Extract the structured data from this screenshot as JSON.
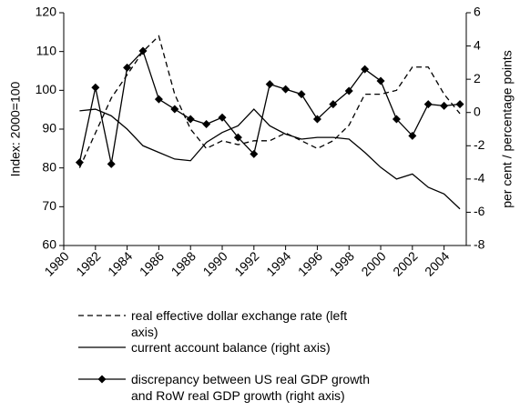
{
  "chart_data": {
    "type": "line",
    "y_label": "Index: 2000=100",
    "y2_label": "per cent / percentage points",
    "x": [
      1981,
      1982,
      1983,
      1984,
      1985,
      1986,
      1987,
      1988,
      1989,
      1990,
      1991,
      1992,
      1993,
      1994,
      1995,
      1996,
      1997,
      1998,
      1999,
      2000,
      2001,
      2002,
      2003,
      2004,
      2005
    ],
    "xlim": [
      1980,
      2005.4
    ],
    "xticks": [
      1980,
      1982,
      1984,
      1986,
      1988,
      1990,
      1992,
      1994,
      1996,
      1998,
      2000,
      2002,
      2004
    ],
    "ylim": [
      60,
      120
    ],
    "yticks": [
      60,
      70,
      80,
      90,
      100,
      110,
      120
    ],
    "y2lim": [
      -8,
      6
    ],
    "y2ticks": [
      -8,
      -6,
      -4,
      -2,
      0,
      2,
      4,
      6
    ],
    "series": [
      {
        "name": "real effective dollar exchange rate (left axis)",
        "color": "#000000",
        "dash": "6,4",
        "marker": "none",
        "axis": "y",
        "values": [
          80,
          89,
          98,
          104,
          110,
          114,
          99,
          90,
          85,
          87,
          86,
          87,
          87,
          89,
          87,
          85,
          87,
          91,
          99,
          99,
          100,
          106,
          106,
          99,
          94
        ]
      },
      {
        "name": "current account balance (right axis)",
        "color": "#000000",
        "dash": "none",
        "marker": "none",
        "axis": "y2",
        "values": [
          0.1,
          0.2,
          -0.2,
          -1.0,
          -2.0,
          -2.4,
          -2.8,
          -2.9,
          -1.8,
          -1.2,
          -0.8,
          0.2,
          -0.8,
          -1.3,
          -1.6,
          -1.5,
          -1.5,
          -1.6,
          -2.4,
          -3.3,
          -4.0,
          -3.7,
          -4.5,
          -4.9,
          -5.8
        ]
      },
      {
        "name": "discrepancy between US real GDP growth and RoW real GDP growth (right axis)",
        "color": "#000000",
        "dash": "none",
        "marker": "diamond",
        "axis": "y2",
        "values": [
          -3.0,
          1.5,
          -3.1,
          2.7,
          3.7,
          0.8,
          0.2,
          -0.4,
          -0.7,
          -0.3,
          -1.5,
          -2.5,
          1.7,
          1.4,
          1.1,
          -0.4,
          0.5,
          1.3,
          2.6,
          1.9,
          -0.4,
          -1.4,
          0.5,
          0.4,
          0.5
        ]
      }
    ]
  }
}
